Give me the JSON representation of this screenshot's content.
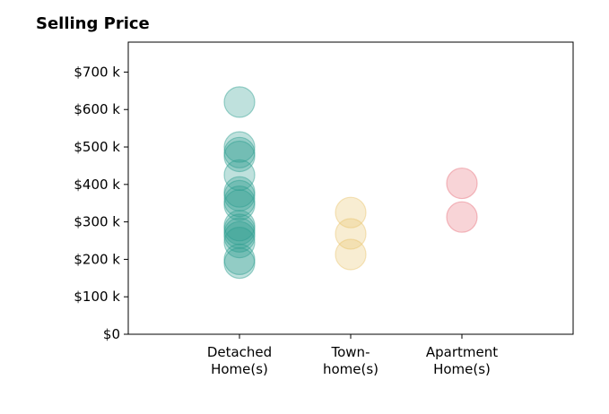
{
  "chart_data": {
    "type": "scatter",
    "title": "Selling Price",
    "xlabel": "",
    "ylabel": "",
    "ylim": [
      0,
      780000
    ],
    "yticks": [
      0,
      100000,
      200000,
      300000,
      400000,
      500000,
      600000,
      700000
    ],
    "ytick_labels": [
      "$0",
      "$100 k",
      "$200 k",
      "$300 k",
      "$400 k",
      "$500 k",
      "$600 k",
      "$700 k"
    ],
    "categories": [
      "Detached Home(s)",
      "Town- home(s)",
      "Apartment Home(s)"
    ],
    "category_label_lines": [
      [
        "Detached",
        "Home(s)"
      ],
      [
        "Town-",
        "home(s)"
      ],
      [
        "Apartment",
        "Home(s)"
      ]
    ],
    "grid": false,
    "series": [
      {
        "category": "Detached Home(s)",
        "color": "#2a9d8f",
        "values": [
          620000,
          500000,
          485000,
          475000,
          425000,
          380000,
          370000,
          355000,
          345000,
          290000,
          280000,
          270000,
          260000,
          245000,
          200000,
          190000
        ]
      },
      {
        "category": "Town- home(s)",
        "color": "#e9c46a",
        "values": [
          325000,
          268000,
          213000
        ]
      },
      {
        "category": "Apartment Home(s)",
        "color": "#e76f7a",
        "values": [
          403000,
          313000
        ]
      }
    ]
  }
}
